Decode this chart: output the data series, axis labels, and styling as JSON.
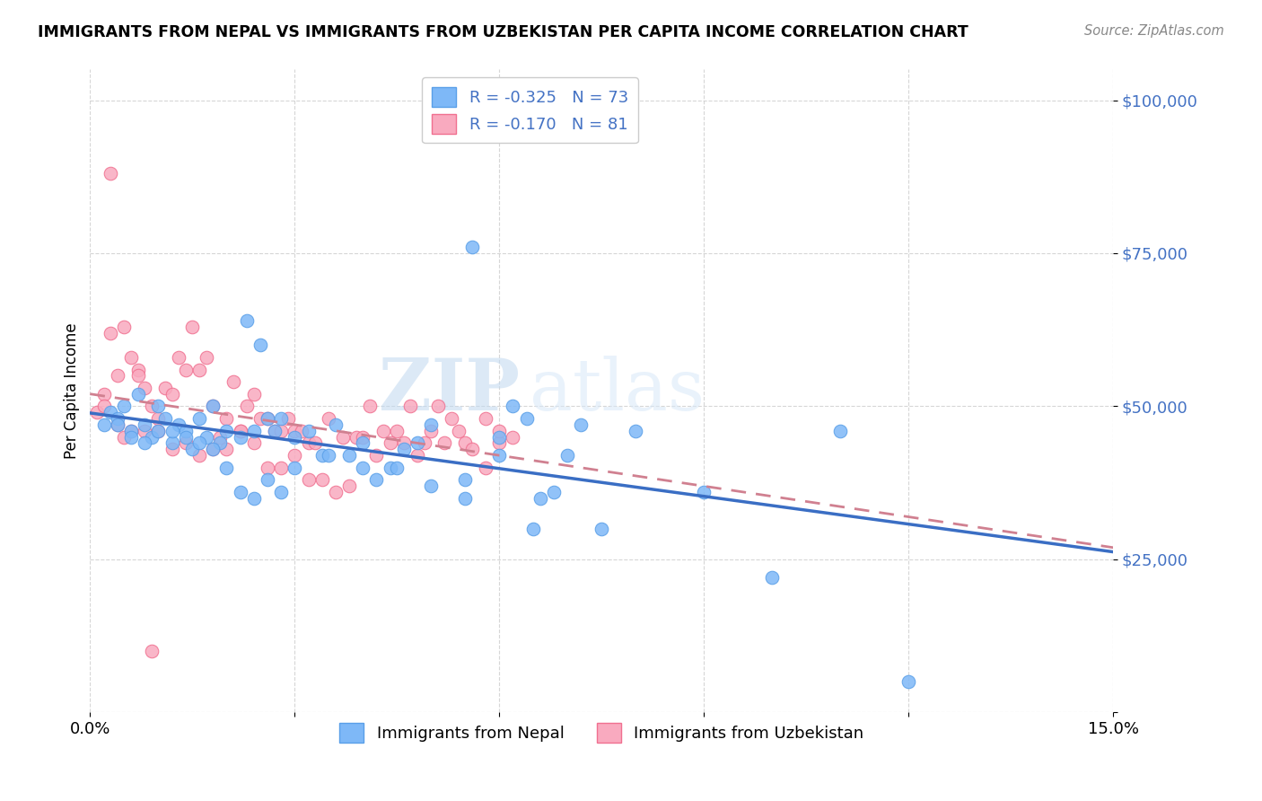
{
  "title": "IMMIGRANTS FROM NEPAL VS IMMIGRANTS FROM UZBEKISTAN PER CAPITA INCOME CORRELATION CHART",
  "source": "Source: ZipAtlas.com",
  "ylabel": "Per Capita Income",
  "yticks": [
    0,
    25000,
    50000,
    75000,
    100000
  ],
  "ytick_labels": [
    "",
    "$25,000",
    "$50,000",
    "$75,000",
    "$100,000"
  ],
  "xlim": [
    0.0,
    0.15
  ],
  "ylim": [
    0,
    105000
  ],
  "nepal_color": "#7EB8F7",
  "nepal_edge": "#5A9FE8",
  "uzbekistan_color": "#F9AABF",
  "uzbekistan_edge": "#F07090",
  "nepal_R": "-0.325",
  "nepal_N": "73",
  "uzbekistan_R": "-0.170",
  "uzbekistan_N": "81",
  "legend_bottom_labels": [
    "Immigrants from Nepal",
    "Immigrants from Uzbekistan"
  ],
  "watermark_zip": "ZIP",
  "watermark_atlas": "atlas",
  "nepal_scatter_x": [
    0.002,
    0.003,
    0.004,
    0.005,
    0.006,
    0.007,
    0.008,
    0.009,
    0.01,
    0.011,
    0.012,
    0.013,
    0.014,
    0.015,
    0.016,
    0.017,
    0.018,
    0.019,
    0.02,
    0.022,
    0.023,
    0.024,
    0.025,
    0.026,
    0.027,
    0.028,
    0.03,
    0.032,
    0.034,
    0.036,
    0.038,
    0.04,
    0.042,
    0.044,
    0.046,
    0.048,
    0.05,
    0.055,
    0.06,
    0.065,
    0.07,
    0.075,
    0.08,
    0.09,
    0.1,
    0.11,
    0.12,
    0.004,
    0.006,
    0.008,
    0.01,
    0.012,
    0.014,
    0.016,
    0.018,
    0.02,
    0.022,
    0.024,
    0.026,
    0.028,
    0.03,
    0.035,
    0.04,
    0.045,
    0.05,
    0.055,
    0.06,
    0.062,
    0.064,
    0.072,
    0.056,
    0.066,
    0.068
  ],
  "nepal_scatter_y": [
    47000,
    49000,
    48000,
    50000,
    46000,
    52000,
    47000,
    45000,
    50000,
    48000,
    44000,
    47000,
    46000,
    43000,
    48000,
    45000,
    50000,
    44000,
    46000,
    45000,
    64000,
    46000,
    60000,
    48000,
    46000,
    48000,
    45000,
    46000,
    42000,
    47000,
    42000,
    44000,
    38000,
    40000,
    43000,
    44000,
    47000,
    38000,
    42000,
    30000,
    42000,
    30000,
    46000,
    36000,
    22000,
    46000,
    5000,
    47000,
    45000,
    44000,
    46000,
    46000,
    45000,
    44000,
    43000,
    40000,
    36000,
    35000,
    38000,
    36000,
    40000,
    42000,
    40000,
    40000,
    37000,
    35000,
    45000,
    50000,
    48000,
    47000,
    76000,
    35000,
    36000
  ],
  "uzbekistan_scatter_x": [
    0.001,
    0.002,
    0.003,
    0.004,
    0.005,
    0.006,
    0.007,
    0.008,
    0.009,
    0.01,
    0.011,
    0.012,
    0.013,
    0.014,
    0.015,
    0.016,
    0.017,
    0.018,
    0.019,
    0.02,
    0.021,
    0.022,
    0.023,
    0.024,
    0.025,
    0.026,
    0.027,
    0.028,
    0.029,
    0.03,
    0.031,
    0.032,
    0.033,
    0.035,
    0.037,
    0.039,
    0.041,
    0.043,
    0.045,
    0.047,
    0.049,
    0.051,
    0.053,
    0.055,
    0.058,
    0.06,
    0.062,
    0.002,
    0.004,
    0.006,
    0.008,
    0.01,
    0.012,
    0.014,
    0.016,
    0.018,
    0.02,
    0.022,
    0.024,
    0.026,
    0.028,
    0.03,
    0.032,
    0.034,
    0.036,
    0.038,
    0.04,
    0.042,
    0.044,
    0.046,
    0.048,
    0.05,
    0.052,
    0.054,
    0.056,
    0.058,
    0.06,
    0.003,
    0.005,
    0.007,
    0.009
  ],
  "uzbekistan_scatter_y": [
    49000,
    52000,
    62000,
    55000,
    63000,
    58000,
    56000,
    53000,
    50000,
    48000,
    53000,
    52000,
    58000,
    56000,
    63000,
    56000,
    58000,
    50000,
    45000,
    48000,
    54000,
    46000,
    50000,
    52000,
    48000,
    48000,
    46000,
    46000,
    48000,
    46000,
    46000,
    44000,
    44000,
    48000,
    45000,
    45000,
    50000,
    46000,
    46000,
    50000,
    44000,
    50000,
    48000,
    44000,
    48000,
    44000,
    45000,
    50000,
    47000,
    46000,
    46000,
    46000,
    43000,
    44000,
    42000,
    43000,
    43000,
    46000,
    44000,
    40000,
    40000,
    42000,
    38000,
    38000,
    36000,
    37000,
    45000,
    42000,
    44000,
    44000,
    42000,
    46000,
    44000,
    46000,
    43000,
    40000,
    46000,
    88000,
    45000,
    55000,
    10000
  ]
}
